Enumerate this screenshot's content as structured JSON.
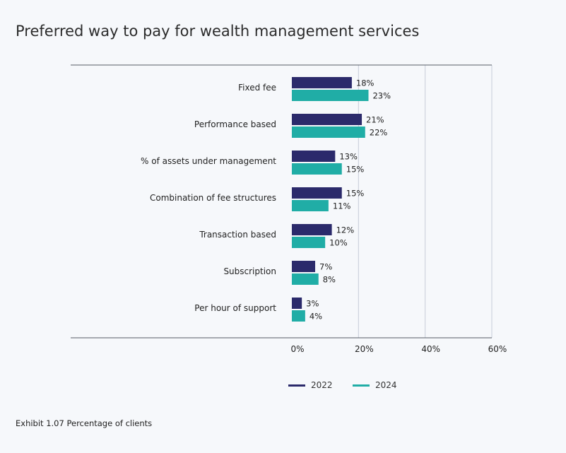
{
  "title": "Preferred way to pay for wealth management services",
  "footnote": "Exhibit 1.07 Percentage of clients",
  "colors": {
    "2022": "#2b2a6b",
    "2024": "#20ada6",
    "grid": "#c7cdd8",
    "axis": "#555b66"
  },
  "chart_data": {
    "type": "bar",
    "orientation": "horizontal",
    "categories": [
      "Fixed fee",
      "Performance based",
      "% of assets under management",
      "Combination of fee structures",
      "Transaction based",
      "Subscription",
      "Per hour of support"
    ],
    "series": [
      {
        "name": "2022",
        "values": [
          18,
          21,
          13,
          15,
          12,
          7,
          3
        ],
        "labels": [
          "18%",
          "21%",
          "13%",
          "15%",
          "12%",
          "7%",
          "3%"
        ]
      },
      {
        "name": "2024",
        "values": [
          23,
          22,
          15,
          11,
          10,
          8,
          4
        ],
        "labels": [
          "23%",
          "22%",
          "15%",
          "11%",
          "10%",
          "8%",
          "4%"
        ]
      }
    ],
    "xlim": [
      0,
      60
    ],
    "xticks": [
      0,
      20,
      40,
      60
    ],
    "xtick_labels": [
      "0%",
      "20%",
      "40%",
      "60%"
    ],
    "grid": true,
    "legend_placement": "bottom"
  }
}
